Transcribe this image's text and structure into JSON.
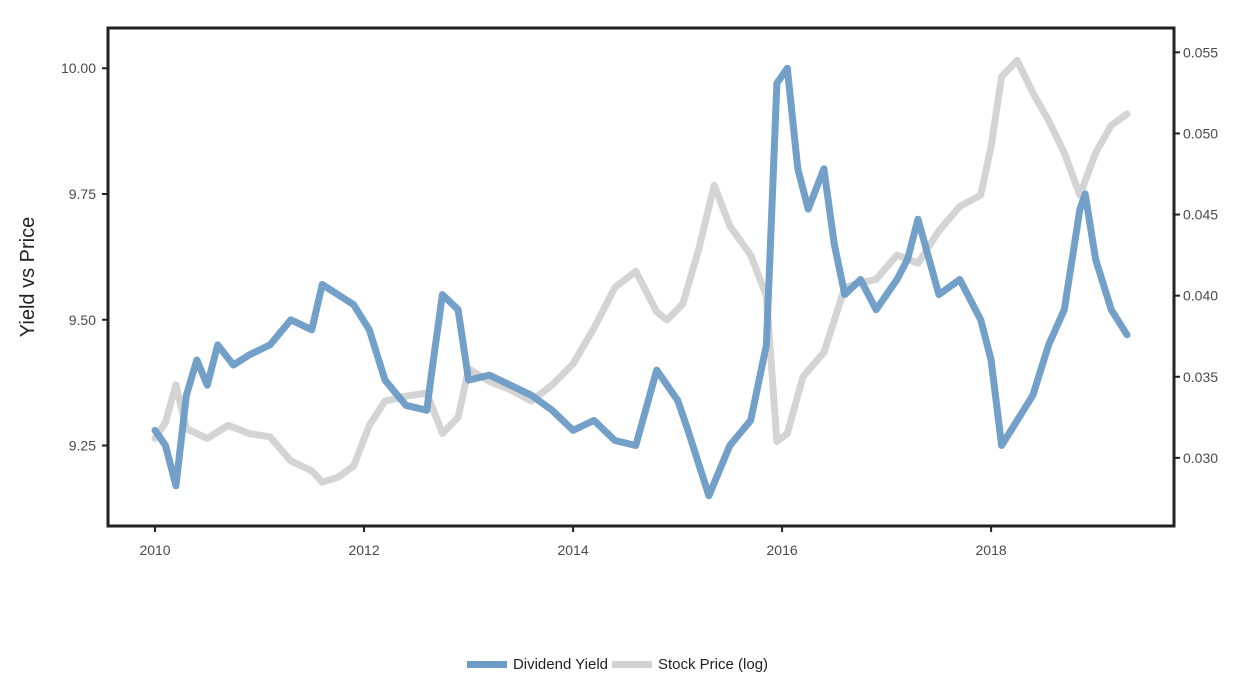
{
  "chart_data": {
    "type": "line",
    "title": "",
    "xlabel": "",
    "ylabel": "Yield vs Price",
    "x_ticks": [
      "2010",
      "2012",
      "2014",
      "2016",
      "2018"
    ],
    "x_range": [
      2009.55,
      2019.75
    ],
    "left_axis": {
      "ylim": [
        9.09,
        10.08
      ],
      "ticks": [
        "9.25",
        "9.50",
        "9.75",
        "10.00"
      ]
    },
    "right_axis": {
      "ylim": [
        0.0258,
        0.0565
      ],
      "ticks": [
        "0.030",
        "0.035",
        "0.040",
        "0.045",
        "0.050",
        "0.055"
      ]
    },
    "series": [
      {
        "name": "Dividend Yield",
        "axis": "left",
        "color": "#6c9bc6",
        "x": [
          2010.0,
          2010.1,
          2010.2,
          2010.3,
          2010.4,
          2010.5,
          2010.6,
          2010.75,
          2010.9,
          2011.1,
          2011.3,
          2011.5,
          2011.6,
          2011.75,
          2011.9,
          2012.05,
          2012.2,
          2012.4,
          2012.6,
          2012.65,
          2012.75,
          2012.9,
          2013.0,
          2013.2,
          2013.4,
          2013.6,
          2013.8,
          2014.0,
          2014.2,
          2014.4,
          2014.6,
          2014.8,
          2015.0,
          2015.1,
          2015.3,
          2015.5,
          2015.7,
          2015.85,
          2015.95,
          2016.05,
          2016.15,
          2016.25,
          2016.4,
          2016.5,
          2016.6,
          2016.75,
          2016.9,
          2017.1,
          2017.2,
          2017.3,
          2017.5,
          2017.7,
          2017.9,
          2018.0,
          2018.1,
          2018.25,
          2018.4,
          2018.55,
          2018.7,
          2018.85,
          2018.9,
          2019.0,
          2019.15,
          2019.3
        ],
        "values": [
          9.28,
          9.25,
          9.17,
          9.35,
          9.42,
          9.37,
          9.45,
          9.41,
          9.43,
          9.45,
          9.5,
          9.48,
          9.57,
          9.55,
          9.53,
          9.48,
          9.38,
          9.33,
          9.32,
          9.4,
          9.55,
          9.52,
          9.38,
          9.39,
          9.37,
          9.35,
          9.32,
          9.28,
          9.3,
          9.26,
          9.25,
          9.4,
          9.34,
          9.28,
          9.15,
          9.25,
          9.3,
          9.45,
          9.97,
          10.0,
          9.8,
          9.72,
          9.8,
          9.65,
          9.55,
          9.58,
          9.52,
          9.58,
          9.62,
          9.7,
          9.55,
          9.58,
          9.5,
          9.42,
          9.25,
          9.3,
          9.35,
          9.45,
          9.52,
          9.72,
          9.75,
          9.62,
          9.52,
          9.47
        ]
      },
      {
        "name": "Stock Price (log)",
        "axis": "right",
        "color": "#d2d2d2",
        "x": [
          2010.0,
          2010.1,
          2010.2,
          2010.3,
          2010.5,
          2010.7,
          2010.9,
          2011.1,
          2011.3,
          2011.5,
          2011.6,
          2011.75,
          2011.9,
          2012.05,
          2012.2,
          2012.4,
          2012.6,
          2012.75,
          2012.9,
          2013.0,
          2013.2,
          2013.4,
          2013.6,
          2013.8,
          2014.0,
          2014.2,
          2014.4,
          2014.6,
          2014.8,
          2014.9,
          2015.05,
          2015.2,
          2015.35,
          2015.5,
          2015.7,
          2015.85,
          2015.95,
          2016.05,
          2016.2,
          2016.4,
          2016.6,
          2016.75,
          2016.9,
          2017.1,
          2017.3,
          2017.5,
          2017.7,
          2017.9,
          2018.0,
          2018.1,
          2018.25,
          2018.4,
          2018.55,
          2018.7,
          2018.85,
          2019.0,
          2019.15,
          2019.3
        ],
        "values": [
          0.0312,
          0.0322,
          0.0345,
          0.0318,
          0.0312,
          0.032,
          0.0315,
          0.0313,
          0.0298,
          0.0292,
          0.0285,
          0.0288,
          0.0295,
          0.032,
          0.0335,
          0.0338,
          0.034,
          0.0315,
          0.0325,
          0.0355,
          0.0347,
          0.0342,
          0.0335,
          0.0345,
          0.0358,
          0.038,
          0.0405,
          0.0415,
          0.039,
          0.0385,
          0.0395,
          0.0428,
          0.0468,
          0.0443,
          0.0425,
          0.04,
          0.031,
          0.0315,
          0.035,
          0.0365,
          0.0405,
          0.0408,
          0.041,
          0.0425,
          0.042,
          0.044,
          0.0455,
          0.0462,
          0.0492,
          0.0535,
          0.0545,
          0.0525,
          0.0508,
          0.0488,
          0.0462,
          0.0488,
          0.0505,
          0.0512
        ]
      }
    ]
  }
}
